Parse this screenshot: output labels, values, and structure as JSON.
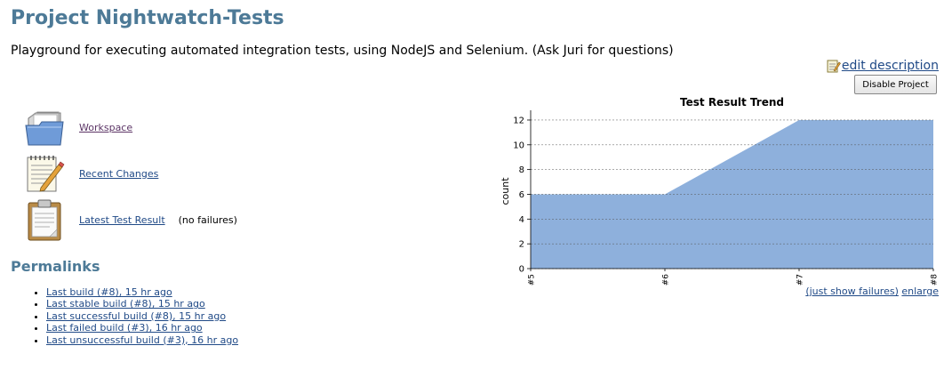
{
  "header": {
    "title": "Project Nightwatch-Tests",
    "description": "Playground for executing automated integration tests, using NodeJS and Selenium. (Ask Juri for questions)",
    "edit_description": "edit description",
    "disable_button": "Disable Project"
  },
  "tasks": [
    {
      "label": "Workspace",
      "icon": "folder-icon",
      "note": ""
    },
    {
      "label": "Recent Changes",
      "icon": "notepad-icon",
      "note": ""
    },
    {
      "label": "Latest Test Result",
      "icon": "clipboard-icon",
      "note": "(no failures)"
    }
  ],
  "permalinks": {
    "title": "Permalinks",
    "items": [
      "Last build (#8), 15 hr ago",
      "Last stable build (#8), 15 hr ago",
      "Last successful build (#8), 15 hr ago",
      "Last failed build (#3), 16 hr ago",
      "Last unsuccessful build (#3), 16 hr ago"
    ]
  },
  "trend_links": {
    "failures": "(just show failures)",
    "enlarge": "enlarge"
  },
  "colors": {
    "title": "#4d7a97",
    "link": "#204a87",
    "area": "#8eb0dc"
  },
  "chart_data": {
    "type": "area",
    "title": "Test Result Trend",
    "xlabel": "",
    "ylabel": "count",
    "categories": [
      "#5",
      "#6",
      "#7",
      "#8"
    ],
    "series": [
      {
        "values": [
          6,
          6,
          12,
          12
        ]
      }
    ],
    "ylim": [
      0,
      12.5
    ],
    "yticks": [
      0,
      2,
      4,
      6,
      8,
      10,
      12
    ],
    "grid": true
  }
}
